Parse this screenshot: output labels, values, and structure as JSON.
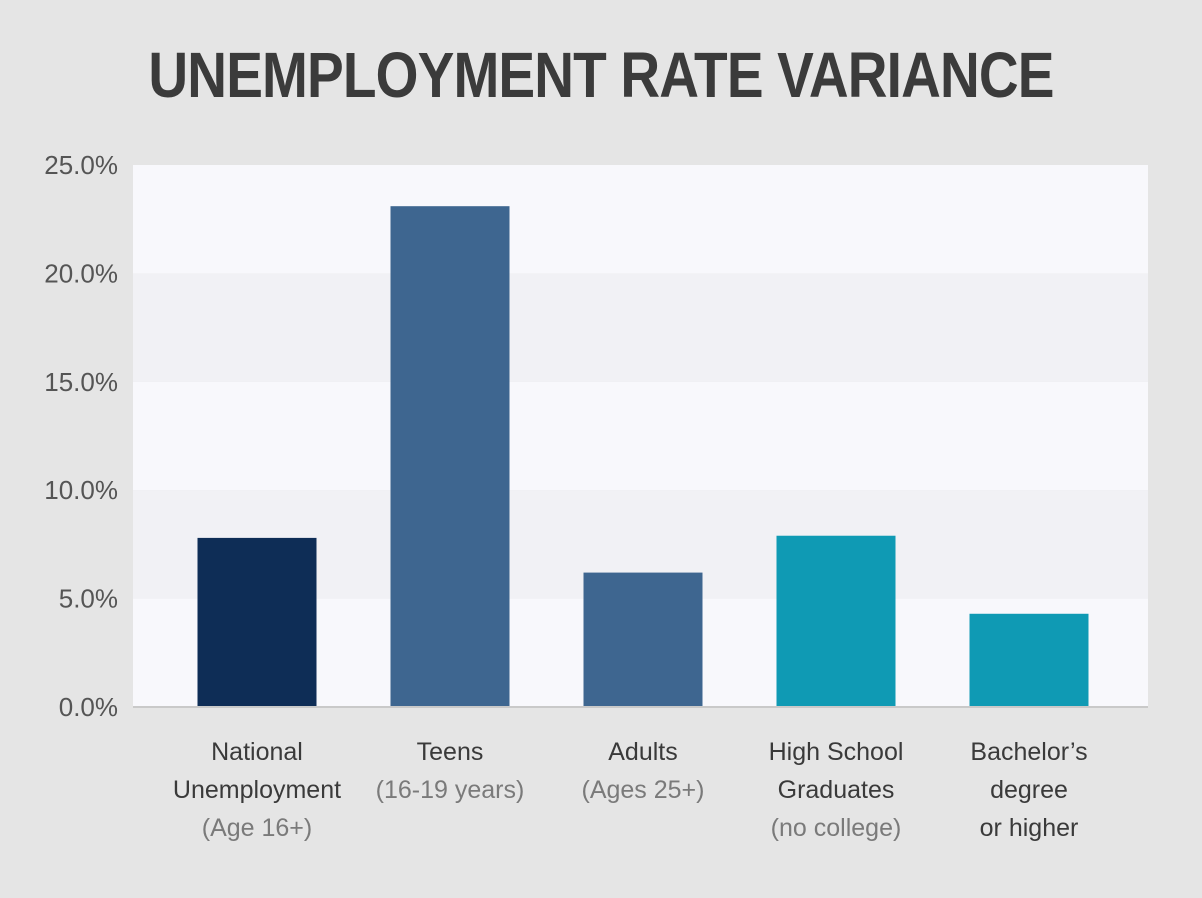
{
  "chart_data": {
    "type": "bar",
    "title": "UNEMPLOYMENT RATE VARIANCE",
    "xlabel": "",
    "ylabel": "",
    "ylim": [
      0,
      25
    ],
    "yticks": [
      "0.0%",
      "5.0%",
      "10.0%",
      "15.0%",
      "20.0%",
      "25.0%"
    ],
    "grid": "alternating horizontal bands",
    "categories": [
      {
        "lines": [
          "National",
          "Unemployment"
        ],
        "sub": [
          "(Age 16+)"
        ]
      },
      {
        "lines": [
          "Teens"
        ],
        "sub": [
          "(16-19 years)"
        ]
      },
      {
        "lines": [
          "Adults"
        ],
        "sub": [
          "(Ages 25+)"
        ]
      },
      {
        "lines": [
          "High School",
          "Graduates"
        ],
        "sub": [
          "(no college)"
        ]
      },
      {
        "lines": [
          "Bachelor’s",
          "degree",
          "or higher"
        ],
        "sub": []
      }
    ],
    "values": [
      7.8,
      23.1,
      6.2,
      7.9,
      4.3
    ],
    "colors": [
      "#0e2d56",
      "#3e6690",
      "#3e6690",
      "#0f9ab4",
      "#0f9ab4"
    ],
    "band_colors": [
      "#f8f8fc",
      "#f1f1f5"
    ]
  }
}
